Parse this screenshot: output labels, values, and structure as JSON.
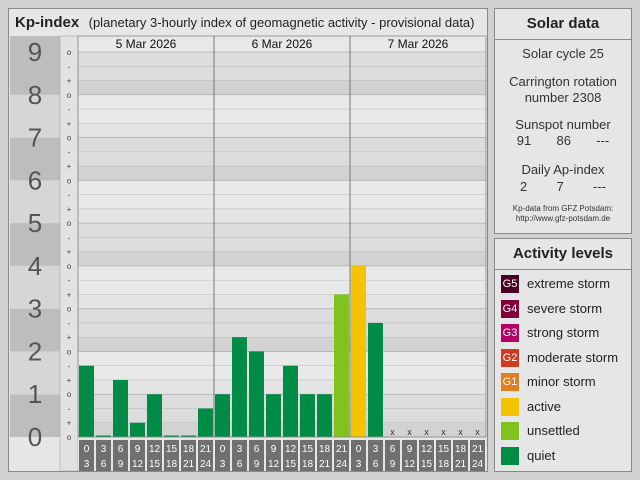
{
  "header": {
    "title": "Kp-index",
    "subtitle": "(planetary 3-hourly index of geomagnetic activity - provisional data)"
  },
  "chart_data": {
    "type": "bar",
    "title": "Kp-index",
    "subtitle": "(planetary 3-hourly index of geomagnetic activity - provisional data)",
    "ylim": [
      0,
      9
    ],
    "y_ticks": [
      "0",
      "1",
      "2",
      "3",
      "4",
      "5",
      "6",
      "7",
      "8",
      "9"
    ],
    "y_minor_ticks": [
      "o",
      "+",
      "-"
    ],
    "days": [
      "5 Mar 2026",
      "6 Mar 2026",
      "7 Mar 2026"
    ],
    "interval_start": [
      "0",
      "3",
      "6",
      "9",
      "12",
      "15",
      "18",
      "21"
    ],
    "interval_end": [
      "3",
      "6",
      "9",
      "12",
      "15",
      "18",
      "21",
      "24"
    ],
    "missing_marker": "x",
    "values": [
      1.667,
      0,
      1.333,
      0.333,
      1,
      0,
      0,
      0.667,
      1,
      2.333,
      2,
      1,
      1.667,
      1,
      1,
      3.333,
      4,
      2.667,
      null,
      null,
      null,
      null,
      null,
      null
    ],
    "level_colors": [
      "#008c46",
      "#008c46",
      "#008c46",
      "#008c46",
      "#80c21e",
      "#f5c400",
      "#e07f1e",
      "#d23a22",
      "#a8005a",
      "#6a0040"
    ]
  },
  "solar": {
    "title": "Solar data",
    "cycle": "Solar cycle 25",
    "carrington_1": "Carrington rotation",
    "carrington_2": "number 2308",
    "sunspot_label": "Sunspot number",
    "sunspot_values": [
      "91",
      "86",
      "---"
    ],
    "ap_label": "Daily Ap-index",
    "ap_values": [
      "2",
      "7",
      "---"
    ],
    "source_1": "Kp-data from  GFZ Potsdam:",
    "source_2": "http://www.gfz-potsdam.de"
  },
  "activity": {
    "title": "Activity levels",
    "levels": [
      {
        "code": "G5",
        "label": "extreme storm",
        "color": "#4a0022"
      },
      {
        "code": "G4",
        "label": "severe storm",
        "color": "#80003c"
      },
      {
        "code": "G3",
        "label": "strong storm",
        "color": "#b40064"
      },
      {
        "code": "G2",
        "label": "moderate storm",
        "color": "#d23a22"
      },
      {
        "code": "G1",
        "label": "minor storm",
        "color": "#e07f1e"
      },
      {
        "code": "",
        "label": "active",
        "color": "#f5c400"
      },
      {
        "code": "",
        "label": "unsettled",
        "color": "#80c21e"
      },
      {
        "code": "",
        "label": "quiet",
        "color": "#008c46"
      }
    ]
  }
}
